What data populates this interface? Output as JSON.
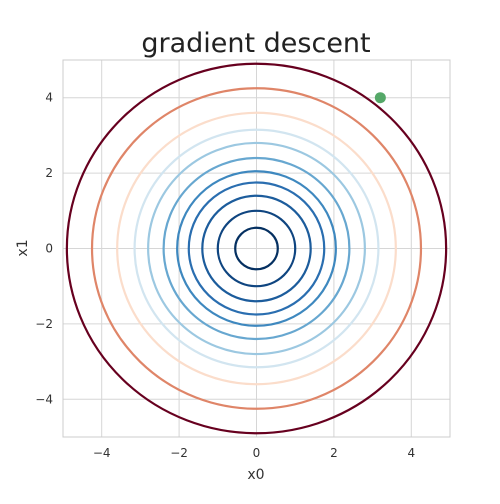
{
  "chart_data": {
    "type": "contour",
    "title": "gradient descent",
    "xlabel": "x0",
    "ylabel": "x1",
    "xlim": [
      -5,
      5
    ],
    "ylim": [
      -5,
      5
    ],
    "xticks": [
      -4,
      -2,
      0,
      2,
      4
    ],
    "yticks": [
      -4,
      -2,
      0,
      2,
      4
    ],
    "xtick_labels": [
      "−4",
      "−2",
      "0",
      "2",
      "4"
    ],
    "ytick_labels": [
      "−4",
      "−2",
      "0",
      "2",
      "4"
    ],
    "grid": true,
    "colormap": "RdBu_r",
    "contours": [
      {
        "radius": 0.55,
        "color": "#053061"
      },
      {
        "radius": 1.0,
        "color": "#0f4580"
      },
      {
        "radius": 1.4,
        "color": "#1c5c9c"
      },
      {
        "radius": 1.75,
        "color": "#2a6eb0"
      },
      {
        "radius": 2.05,
        "color": "#3e88bf"
      },
      {
        "radius": 2.4,
        "color": "#67a7d0"
      },
      {
        "radius": 2.8,
        "color": "#9cc8e1"
      },
      {
        "radius": 3.15,
        "color": "#d2e5f0"
      },
      {
        "radius": 3.6,
        "color": "#fbddcb"
      },
      {
        "radius": 4.25,
        "color": "#df8568"
      },
      {
        "radius": 4.9,
        "color": "#67001f"
      }
    ],
    "points": [
      {
        "x": 3.2,
        "y": 4.0,
        "color": "#55a868"
      }
    ]
  }
}
